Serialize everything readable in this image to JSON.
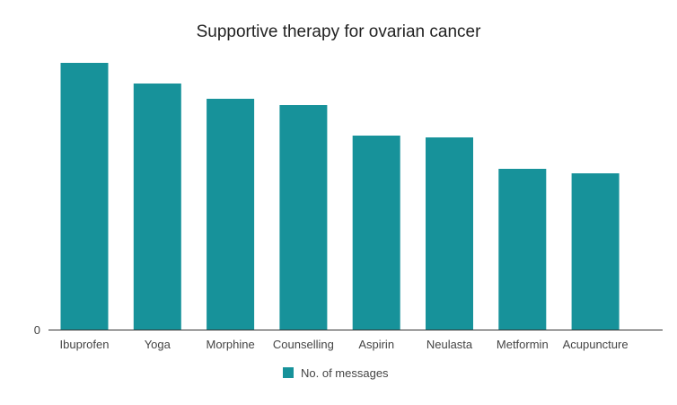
{
  "chart_data": {
    "type": "bar",
    "title": "Supportive therapy for ovarian cancer",
    "xlabel": "",
    "ylabel": "",
    "categories": [
      "Ibuprofen",
      "Yoga",
      "Morphine",
      "Counselling",
      "Aspirin",
      "Neulasta",
      "Metformin",
      "Acupuncture"
    ],
    "series": [
      {
        "name": "No. of messages",
        "color": "#17929a",
        "values": [
          297,
          274,
          257,
          250,
          216,
          214,
          179,
          174
        ]
      }
    ],
    "ylim": [
      0,
      317
    ],
    "yticks": [
      "0"
    ],
    "grid": false,
    "legend": "bottom"
  }
}
